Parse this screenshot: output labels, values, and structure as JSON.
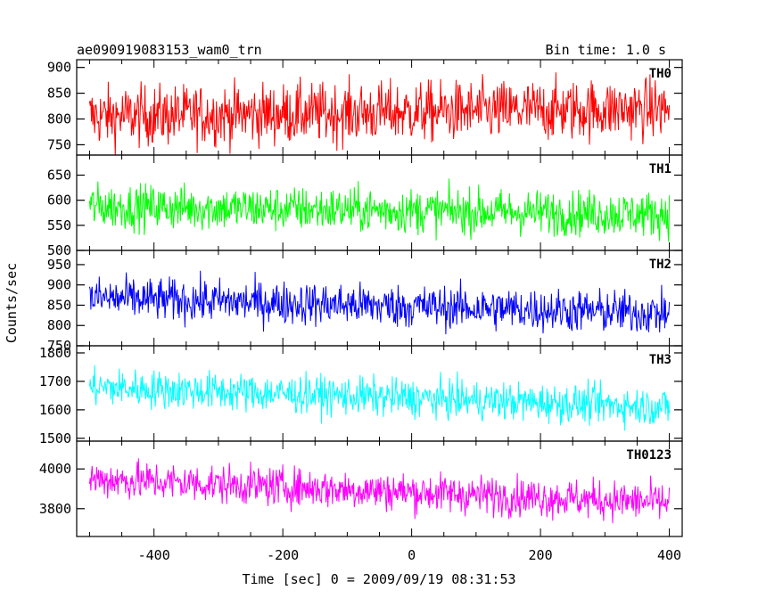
{
  "header": {
    "title": "ae090919083153_wam0_trn",
    "bin_time": "Bin time: 1.0 s"
  },
  "chart_data": {
    "type": "line",
    "xlabel": "Time [sec] 0 = 2009/09/19 08:31:53",
    "ylabel": "Counts/sec",
    "xlim": [
      -520,
      420
    ],
    "x_ticks": [
      -400,
      -200,
      0,
      200,
      400
    ],
    "x_range_data": [
      -500,
      400
    ],
    "grid": false,
    "panels": [
      {
        "name": "TH0",
        "color": "#ff0000",
        "ylim": [
          730,
          915
        ],
        "yticks": [
          750,
          800,
          850,
          900
        ],
        "mean_start": 805,
        "mean_end": 820,
        "noise": 42
      },
      {
        "name": "TH1",
        "color": "#00ff00",
        "ylim": [
          500,
          690
        ],
        "yticks": [
          500,
          550,
          600,
          650
        ],
        "mean_start": 588,
        "mean_end": 572,
        "noise": 32
      },
      {
        "name": "TH2",
        "color": "#0000ff",
        "ylim": [
          750,
          985
        ],
        "yticks": [
          750,
          800,
          850,
          900,
          950
        ],
        "mean_start": 868,
        "mean_end": 830,
        "noise": 38
      },
      {
        "name": "TH3",
        "color": "#00ffff",
        "ylim": [
          1490,
          1825
        ],
        "yticks": [
          1500,
          1600,
          1700,
          1800
        ],
        "mean_start": 1680,
        "mean_end": 1610,
        "noise": 48
      },
      {
        "name": "TH0123",
        "color": "#ff00ff",
        "ylim": [
          3660,
          4140
        ],
        "yticks": [
          3800,
          4000
        ],
        "mean_start": 3950,
        "mean_end": 3830,
        "noise": 70
      }
    ]
  }
}
